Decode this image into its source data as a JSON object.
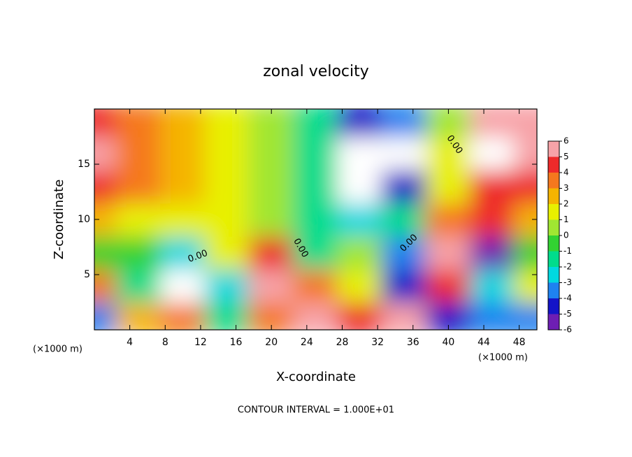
{
  "chart_data": {
    "type": "contour",
    "title": "zonal velocity",
    "x_label": "X-coordinate",
    "y_label": "Z-coordinate",
    "x_unit": "(×1000 m)",
    "y_unit": "(×1000 m)",
    "footer": "CONTOUR INTERVAL = 1.000E+01",
    "contour_labels": [
      "0.00",
      "0.00",
      "0.00",
      "0.00"
    ],
    "x": [
      0,
      5,
      10,
      15,
      20,
      25,
      30,
      35,
      40,
      45,
      50
    ],
    "y": [
      1,
      4,
      7,
      10,
      13,
      16,
      19
    ],
    "z": [
      [
        -4,
        2,
        3,
        -2,
        3,
        5,
        4,
        5,
        -5,
        -4,
        -4
      ],
      [
        3,
        -2,
        -7,
        -3,
        5,
        3,
        1,
        -5,
        4,
        -3,
        1
      ],
      [
        -1,
        -1,
        -3,
        1,
        4,
        -2,
        0,
        -4,
        5,
        -6,
        -1
      ],
      [
        2,
        1.5,
        1.5,
        1,
        0.8,
        -1.5,
        -3,
        -2,
        3,
        4,
        2
      ],
      [
        4,
        3,
        2,
        1.5,
        0.5,
        -2,
        -7,
        -5,
        1,
        4,
        4
      ],
      [
        5,
        3.5,
        2,
        1,
        0.5,
        -2,
        -7,
        -7,
        1,
        7,
        5
      ],
      [
        4.5,
        3.5,
        2,
        1,
        0.5,
        -1.5,
        -4.5,
        -4,
        0,
        5,
        5
      ]
    ],
    "xlim": [
      0,
      50
    ],
    "ylim": [
      0,
      20
    ],
    "xticks": [
      4,
      8,
      12,
      16,
      20,
      24,
      28,
      32,
      36,
      40,
      44,
      48
    ],
    "yticks": [
      5,
      10,
      15
    ],
    "levels": [
      6,
      5,
      4,
      3,
      2,
      1,
      0,
      -1,
      -2,
      -3,
      -4,
      -5,
      -6
    ],
    "colors": [
      "#f7a3a8",
      "#ee2a2a",
      "#f5781e",
      "#f5b400",
      "#e8f000",
      "#a0e632",
      "#32d232",
      "#00dc8c",
      "#00d8e0",
      "#1e82f0",
      "#1414c8",
      "#6e1eb4"
    ],
    "out_of_range_color": "#ffffff"
  }
}
